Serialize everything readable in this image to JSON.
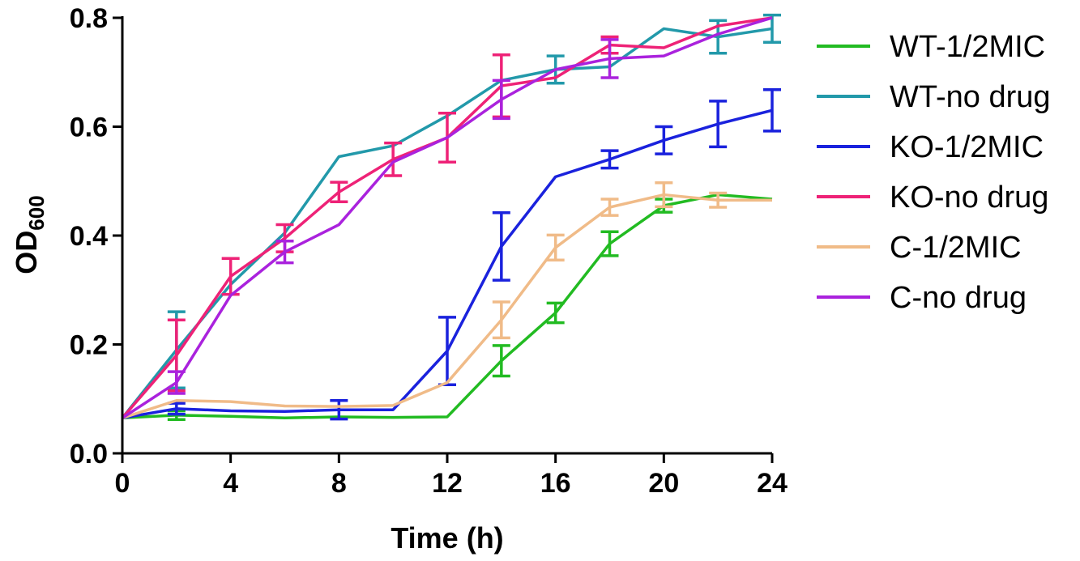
{
  "chart_data": {
    "type": "line",
    "xlabel": "Time (h)",
    "ylabel_main": "OD",
    "ylabel_sub": "600",
    "xlim": [
      0,
      24
    ],
    "ylim": [
      0,
      0.8
    ],
    "xticks": [
      0,
      4,
      8,
      12,
      16,
      20,
      24
    ],
    "yticks": [
      0.0,
      0.2,
      0.4,
      0.6,
      0.8
    ],
    "xtick_labels": [
      "0",
      "4",
      "8",
      "12",
      "16",
      "20",
      "24"
    ],
    "ytick_labels": [
      "0.0",
      "0.2",
      "0.4",
      "0.6",
      "0.8"
    ],
    "legend_position": "right",
    "x": [
      0,
      2,
      4,
      6,
      8,
      10,
      12,
      14,
      16,
      18,
      20,
      22,
      24
    ],
    "series": [
      {
        "name": "WT-1/2MIC",
        "color": "#22bb22",
        "values": [
          0.065,
          0.07,
          0.068,
          0.065,
          0.067,
          0.066,
          0.067,
          0.17,
          0.258,
          0.385,
          0.455,
          0.475,
          0.467
        ],
        "errors": [
          0,
          0.008,
          0,
          0,
          0,
          0,
          0,
          0.028,
          0.018,
          0.022,
          0.012,
          0,
          0
        ]
      },
      {
        "name": "WT-no drug",
        "color": "#2299aa",
        "values": [
          0.065,
          0.19,
          0.31,
          0.405,
          0.545,
          0.565,
          0.62,
          0.685,
          0.705,
          0.71,
          0.78,
          0.765,
          0.78
        ],
        "errors": [
          0,
          0.07,
          0,
          0,
          0,
          0,
          0,
          0,
          0.025,
          0,
          0,
          0.03,
          0.025
        ]
      },
      {
        "name": "KO-1/2MIC",
        "color": "#1a22dd",
        "values": [
          0.065,
          0.082,
          0.078,
          0.077,
          0.08,
          0.08,
          0.188,
          0.38,
          0.508,
          0.54,
          0.575,
          0.605,
          0.63
        ],
        "errors": [
          0,
          0.01,
          0,
          0,
          0.017,
          0,
          0.062,
          0.062,
          0,
          0.016,
          0.025,
          0.042,
          0.038
        ]
      },
      {
        "name": "KO-no drug",
        "color": "#ee2277",
        "values": [
          0.065,
          0.18,
          0.325,
          0.395,
          0.48,
          0.54,
          0.58,
          0.675,
          0.69,
          0.75,
          0.745,
          0.785,
          0.8
        ],
        "errors": [
          0,
          0.065,
          0.033,
          0.025,
          0.018,
          0.03,
          0.045,
          0.057,
          0,
          0.015,
          0,
          0,
          0
        ]
      },
      {
        "name": "C-1/2MIC",
        "color": "#f0bb88",
        "values": [
          0.065,
          0.097,
          0.095,
          0.087,
          0.086,
          0.088,
          0.13,
          0.245,
          0.378,
          0.452,
          0.475,
          0.465,
          0.465
        ],
        "errors": [
          0,
          0,
          0,
          0,
          0,
          0,
          0,
          0.033,
          0.023,
          0.015,
          0.022,
          0.013,
          0
        ]
      },
      {
        "name": "C-no drug",
        "color": "#aa22dd",
        "values": [
          0.065,
          0.13,
          0.29,
          0.37,
          0.42,
          0.535,
          0.58,
          0.65,
          0.705,
          0.725,
          0.73,
          0.77,
          0.8
        ],
        "errors": [
          0,
          0.02,
          0,
          0.02,
          0,
          0,
          0,
          0.035,
          0,
          0.035,
          0,
          0,
          0
        ]
      }
    ]
  }
}
